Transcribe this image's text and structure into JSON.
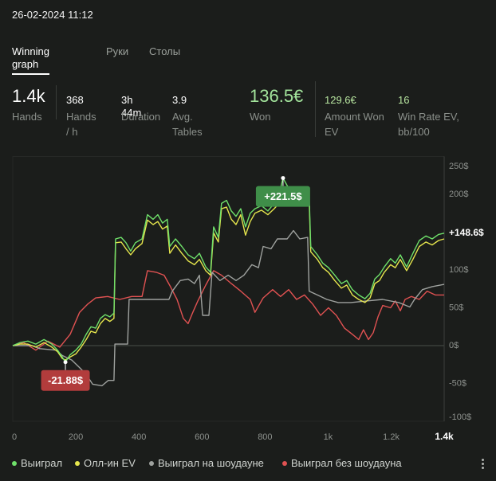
{
  "header": {
    "datetime": "26-02-2024 11:12"
  },
  "tabs": [
    {
      "label": "Winning graph",
      "active": true
    },
    {
      "label": "Руки",
      "active": false
    },
    {
      "label": "Столы",
      "active": false
    }
  ],
  "stats": {
    "hands": {
      "value": "1.4k",
      "label": "Hands"
    },
    "hands_per_hour": {
      "value": "368",
      "label": "Hands / h"
    },
    "duration": {
      "value": "3h 44m",
      "label": "Duration"
    },
    "avg_tables": {
      "value": "3.9",
      "label": "Avg. Tables"
    },
    "won": {
      "value": "136.5€",
      "label": "Won"
    },
    "amount_won_ev": {
      "value": "129.6€",
      "label": "Amount Won EV"
    },
    "win_rate_ev": {
      "value": "16",
      "label": "Win Rate EV, bb/100"
    }
  },
  "colors": {
    "background": "#1b1d1b",
    "won_value": "#a3e49c",
    "ev_value": "#b8e6a0",
    "text_muted": "#8b908b"
  },
  "menu_icon": "more-vertical-icon",
  "chart_data": {
    "type": "line",
    "xlim": [
      0,
      1368
    ],
    "ylim": [
      -100,
      250
    ],
    "grid": false,
    "legend_position": "bottom",
    "x_ticks": [
      {
        "value": 0,
        "label": "0"
      },
      {
        "value": 200,
        "label": "200"
      },
      {
        "value": 400,
        "label": "400"
      },
      {
        "value": 600,
        "label": "600"
      },
      {
        "value": 800,
        "label": "800"
      },
      {
        "value": 1000,
        "label": "1k"
      },
      {
        "value": 1200,
        "label": "1.2k"
      }
    ],
    "x_current": {
      "value": 1368,
      "label": "1.4k"
    },
    "y_ticks": [
      {
        "value": 250,
        "label": "250$"
      },
      {
        "value": 200,
        "label": "200$"
      },
      {
        "value": 100,
        "label": "100$"
      },
      {
        "value": 50,
        "label": "50$"
      },
      {
        "value": 0,
        "label": "0$"
      },
      {
        "value": -50,
        "label": "-50$"
      },
      {
        "value": -100,
        "label": "-100$"
      }
    ],
    "series": [
      {
        "name": "Выиграл",
        "color": "#6fe06a",
        "points": [
          [
            0,
            0
          ],
          [
            23,
            4
          ],
          [
            48,
            6
          ],
          [
            73,
            2
          ],
          [
            99,
            8
          ],
          [
            124,
            2
          ],
          [
            142,
            -6
          ],
          [
            157,
            -15
          ],
          [
            167,
            -21.88
          ],
          [
            182,
            -12
          ],
          [
            200,
            -6
          ],
          [
            217,
            2
          ],
          [
            233,
            15
          ],
          [
            248,
            25
          ],
          [
            263,
            23
          ],
          [
            278,
            36
          ],
          [
            293,
            41
          ],
          [
            308,
            38
          ],
          [
            321,
            43
          ],
          [
            326,
            141
          ],
          [
            344,
            143
          ],
          [
            359,
            136
          ],
          [
            374,
            125
          ],
          [
            389,
            136
          ],
          [
            410,
            141
          ],
          [
            427,
            173
          ],
          [
            445,
            167
          ],
          [
            460,
            173
          ],
          [
            475,
            162
          ],
          [
            490,
            167
          ],
          [
            498,
            131
          ],
          [
            516,
            141
          ],
          [
            536,
            131
          ],
          [
            556,
            120
          ],
          [
            576,
            115
          ],
          [
            592,
            122
          ],
          [
            612,
            104
          ],
          [
            627,
            97
          ],
          [
            637,
            157
          ],
          [
            652,
            143
          ],
          [
            662,
            188
          ],
          [
            678,
            192
          ],
          [
            693,
            178
          ],
          [
            708,
            171
          ],
          [
            723,
            181
          ],
          [
            738,
            157
          ],
          [
            753,
            175
          ],
          [
            768,
            181
          ],
          [
            789,
            185
          ],
          [
            809,
            178
          ],
          [
            829,
            188
          ],
          [
            844,
            199
          ],
          [
            857,
            221.5
          ],
          [
            875,
            208
          ],
          [
            900,
            204
          ],
          [
            925,
            202
          ],
          [
            940,
            199
          ],
          [
            945,
            131
          ],
          [
            966,
            120
          ],
          [
            983,
            109
          ],
          [
            1001,
            103
          ],
          [
            1021,
            93
          ],
          [
            1042,
            82
          ],
          [
            1059,
            86
          ],
          [
            1077,
            74
          ],
          [
            1097,
            67
          ],
          [
            1117,
            62
          ],
          [
            1133,
            69
          ],
          [
            1148,
            88
          ],
          [
            1163,
            94
          ],
          [
            1178,
            104
          ],
          [
            1198,
            115
          ],
          [
            1213,
            109
          ],
          [
            1229,
            120
          ],
          [
            1249,
            104
          ],
          [
            1269,
            122
          ],
          [
            1289,
            139
          ],
          [
            1310,
            145
          ],
          [
            1330,
            141
          ],
          [
            1350,
            147
          ],
          [
            1368,
            148.6
          ]
        ]
      },
      {
        "name": "Олл-ин EV",
        "color": "#e6e64d",
        "points": [
          [
            0,
            0
          ],
          [
            23,
            2
          ],
          [
            48,
            2
          ],
          [
            73,
            -2
          ],
          [
            99,
            4
          ],
          [
            124,
            -2
          ],
          [
            142,
            -8
          ],
          [
            157,
            -17
          ],
          [
            167,
            -19
          ],
          [
            182,
            -15
          ],
          [
            200,
            -11
          ],
          [
            217,
            -2
          ],
          [
            233,
            8
          ],
          [
            248,
            19
          ],
          [
            263,
            17
          ],
          [
            278,
            29
          ],
          [
            293,
            36
          ],
          [
            308,
            32
          ],
          [
            321,
            36
          ],
          [
            326,
            136
          ],
          [
            344,
            137
          ],
          [
            359,
            128
          ],
          [
            374,
            120
          ],
          [
            389,
            128
          ],
          [
            410,
            135
          ],
          [
            427,
            166
          ],
          [
            445,
            160
          ],
          [
            460,
            164
          ],
          [
            475,
            154
          ],
          [
            490,
            158
          ],
          [
            498,
            122
          ],
          [
            516,
            133
          ],
          [
            536,
            122
          ],
          [
            556,
            112
          ],
          [
            576,
            107
          ],
          [
            592,
            114
          ],
          [
            612,
            99
          ],
          [
            627,
            93
          ],
          [
            637,
            149
          ],
          [
            652,
            137
          ],
          [
            662,
            181
          ],
          [
            678,
            183
          ],
          [
            693,
            167
          ],
          [
            708,
            160
          ],
          [
            723,
            173
          ],
          [
            738,
            146
          ],
          [
            753,
            164
          ],
          [
            768,
            175
          ],
          [
            789,
            179
          ],
          [
            809,
            173
          ],
          [
            829,
            181
          ],
          [
            844,
            188
          ],
          [
            857,
            202
          ],
          [
            875,
            199
          ],
          [
            900,
            196
          ],
          [
            925,
            194
          ],
          [
            940,
            192
          ],
          [
            945,
            124
          ],
          [
            966,
            114
          ],
          [
            983,
            103
          ],
          [
            1001,
            97
          ],
          [
            1021,
            86
          ],
          [
            1042,
            76
          ],
          [
            1059,
            80
          ],
          [
            1077,
            67
          ],
          [
            1097,
            61
          ],
          [
            1117,
            57
          ],
          [
            1133,
            63
          ],
          [
            1148,
            82
          ],
          [
            1163,
            86
          ],
          [
            1178,
            97
          ],
          [
            1198,
            107
          ],
          [
            1213,
            103
          ],
          [
            1229,
            114
          ],
          [
            1249,
            99
          ],
          [
            1269,
            114
          ],
          [
            1289,
            131
          ],
          [
            1310,
            137
          ],
          [
            1330,
            133
          ],
          [
            1350,
            139
          ],
          [
            1368,
            141
          ]
        ]
      },
      {
        "name": "Выиграл на шоудауне",
        "color": "#9fa29f",
        "points": [
          [
            0,
            0
          ],
          [
            61,
            0
          ],
          [
            86,
            -4
          ],
          [
            137,
            -6
          ],
          [
            157,
            -13
          ],
          [
            187,
            -19
          ],
          [
            212,
            -29
          ],
          [
            233,
            -38
          ],
          [
            253,
            -51
          ],
          [
            283,
            -53
          ],
          [
            303,
            -46
          ],
          [
            321,
            -46
          ],
          [
            324,
            2
          ],
          [
            364,
            2
          ],
          [
            369,
            61
          ],
          [
            495,
            61
          ],
          [
            506,
            72
          ],
          [
            531,
            86
          ],
          [
            556,
            88
          ],
          [
            576,
            82
          ],
          [
            592,
            93
          ],
          [
            602,
            40
          ],
          [
            622,
            40
          ],
          [
            632,
            97
          ],
          [
            657,
            86
          ],
          [
            683,
            93
          ],
          [
            708,
            86
          ],
          [
            733,
            93
          ],
          [
            758,
            107
          ],
          [
            779,
            103
          ],
          [
            794,
            131
          ],
          [
            819,
            128
          ],
          [
            839,
            141
          ],
          [
            870,
            141
          ],
          [
            890,
            152
          ],
          [
            910,
            141
          ],
          [
            935,
            143
          ],
          [
            940,
            72
          ],
          [
            966,
            67
          ],
          [
            996,
            61
          ],
          [
            1032,
            57
          ],
          [
            1072,
            57
          ],
          [
            1122,
            59
          ],
          [
            1173,
            61
          ],
          [
            1224,
            57
          ],
          [
            1259,
            51
          ],
          [
            1274,
            61
          ],
          [
            1299,
            74
          ],
          [
            1330,
            78
          ],
          [
            1368,
            81
          ]
        ]
      },
      {
        "name": "Выиграл без шоудауна",
        "color": "#e05252",
        "points": [
          [
            0,
            0
          ],
          [
            35,
            4
          ],
          [
            73,
            -6
          ],
          [
            111,
            6
          ],
          [
            149,
            -2
          ],
          [
            182,
            15
          ],
          [
            212,
            44
          ],
          [
            238,
            55
          ],
          [
            263,
            63
          ],
          [
            301,
            65
          ],
          [
            339,
            61
          ],
          [
            377,
            65
          ],
          [
            410,
            65
          ],
          [
            427,
            99
          ],
          [
            455,
            97
          ],
          [
            480,
            93
          ],
          [
            500,
            78
          ],
          [
            521,
            61
          ],
          [
            541,
            36
          ],
          [
            556,
            29
          ],
          [
            571,
            44
          ],
          [
            587,
            59
          ],
          [
            612,
            80
          ],
          [
            637,
            99
          ],
          [
            662,
            93
          ],
          [
            693,
            82
          ],
          [
            723,
            72
          ],
          [
            753,
            61
          ],
          [
            768,
            44
          ],
          [
            794,
            63
          ],
          [
            824,
            74
          ],
          [
            849,
            65
          ],
          [
            875,
            74
          ],
          [
            900,
            61
          ],
          [
            925,
            67
          ],
          [
            951,
            55
          ],
          [
            976,
            40
          ],
          [
            1001,
            50
          ],
          [
            1026,
            40
          ],
          [
            1052,
            23
          ],
          [
            1077,
            15
          ],
          [
            1097,
            8
          ],
          [
            1112,
            21
          ],
          [
            1128,
            8
          ],
          [
            1143,
            17
          ],
          [
            1158,
            38
          ],
          [
            1173,
            53
          ],
          [
            1198,
            50
          ],
          [
            1213,
            59
          ],
          [
            1229,
            46
          ],
          [
            1244,
            61
          ],
          [
            1264,
            65
          ],
          [
            1289,
            61
          ],
          [
            1314,
            72
          ],
          [
            1340,
            67
          ],
          [
            1368,
            67
          ]
        ]
      }
    ],
    "annotations": [
      {
        "kind": "max",
        "label": "+221.5$",
        "x": 857,
        "y": 221.5,
        "color": "#3f8e49"
      },
      {
        "kind": "min",
        "label": "-21.88$",
        "x": 167,
        "y": -21.88,
        "color": "#b23c3c"
      }
    ],
    "end_label": {
      "label": "+148.6$",
      "value": 148.6
    }
  }
}
